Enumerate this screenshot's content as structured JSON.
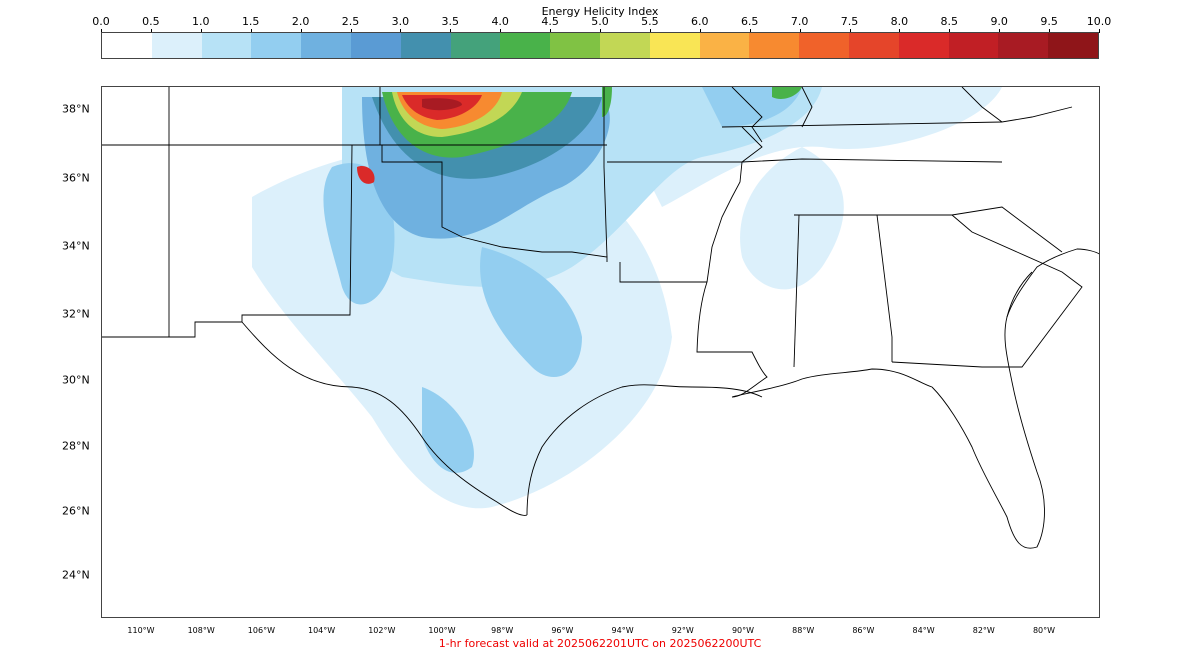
{
  "colorbar": {
    "title": "Energy Helicity Index",
    "ticks": [
      "0.0",
      "0.5",
      "1.0",
      "1.5",
      "2.0",
      "2.5",
      "3.0",
      "3.5",
      "4.0",
      "4.5",
      "5.0",
      "5.5",
      "6.0",
      "6.5",
      "7.0",
      "7.5",
      "8.0",
      "8.5",
      "9.0",
      "9.5",
      "10.0"
    ],
    "colors": [
      "#ffffff",
      "#dcf0fb",
      "#b7e2f6",
      "#93cef0",
      "#6fb1e0",
      "#5a9bd4",
      "#4390ae",
      "#44a27b",
      "#49b24a",
      "#80c244",
      "#c2d755",
      "#f9e555",
      "#fab245",
      "#f78a30",
      "#f0622a",
      "#e5452a",
      "#da2a29",
      "#c11f25",
      "#a81b23",
      "#8f1519"
    ]
  },
  "axes": {
    "lat_labels": [
      "38°N",
      "36°N",
      "34°N",
      "32°N",
      "30°N",
      "28°N",
      "26°N",
      "24°N"
    ],
    "lon_labels": [
      "110°W",
      "108°W",
      "106°W",
      "104°W",
      "102°W",
      "100°W",
      "98°W",
      "96°W",
      "94°W",
      "92°W",
      "90°W",
      "88°W",
      "86°W",
      "84°W",
      "82°W",
      "80°W"
    ]
  },
  "footer": {
    "text": "1-hr forecast valid at 2025062201UTC on 2025062200UTC"
  }
}
